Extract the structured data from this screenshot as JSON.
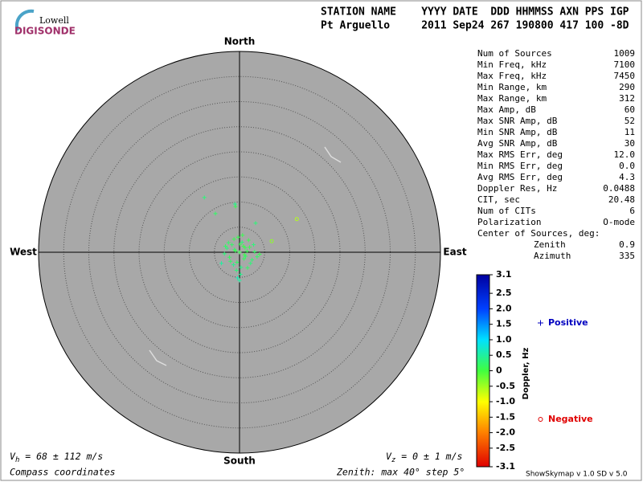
{
  "header": {
    "logo_top": "Lowell",
    "logo_bottom": "DIGISONDE",
    "columns": "STATION NAME    YYYY DATE  DDD HHMMSS AXN PPS IGP",
    "values": "Pt Arguello     2011 Sep24 267 190800 417 100 -8D"
  },
  "stats": [
    [
      "Num of Sources",
      "1009"
    ],
    [
      "Min Freq, kHz",
      "7100"
    ],
    [
      "Max Freq, kHz",
      "7450"
    ],
    [
      "Min Range, km",
      "290"
    ],
    [
      "Max Range, km",
      "312"
    ],
    [
      "Max Amp, dB",
      "60"
    ],
    [
      "Max SNR Amp, dB",
      "52"
    ],
    [
      "Min SNR Amp, dB",
      "11"
    ],
    [
      "Avg SNR Amp, dB",
      "30"
    ],
    [
      "Max RMS Err, deg",
      "12.0"
    ],
    [
      "Min RMS Err, deg",
      "0.0"
    ],
    [
      "Avg RMS Err, deg",
      "4.3"
    ],
    [
      "Doppler Res, Hz",
      "0.0488"
    ],
    [
      "CIT, sec",
      "20.48"
    ],
    [
      "Num of CITs",
      "6"
    ],
    [
      "Polarization",
      "O-mode"
    ]
  ],
  "center": {
    "title": "Center of Sources, deg:",
    "zenith_label": "Zenith",
    "zenith": "0.9",
    "azimuth_label": "Azimuth",
    "azimuth": "335"
  },
  "footer": {
    "vh_symbol": "V",
    "vh_sub": "h",
    "vh_text": " = 68 ± 112 m/s",
    "vz_symbol": "V",
    "vz_sub": "z",
    "vz_text": " = 0 ± 1 m/s",
    "coords": "Compass coordinates",
    "zenith": "Zenith: max 40°  step 5°",
    "version": "ShowSkymap v 1.0   SD v 5.0"
  },
  "chart_data": {
    "type": "skymap",
    "directions": {
      "north": "North",
      "south": "South",
      "east": "East",
      "west": "West"
    },
    "rlim": [
      0,
      40
    ],
    "rticks": [
      5,
      10,
      15,
      20,
      25,
      30,
      35
    ],
    "x": [
      -7,
      -4.8,
      -0.8,
      11.4,
      3.2,
      6.4,
      -0.9,
      0,
      -1,
      1,
      2,
      -2,
      0.5,
      -0.5,
      1.5,
      -1.5,
      2.5,
      -2.5,
      0.3,
      -0.3,
      1.2,
      -1.2,
      0.8,
      -0.8,
      3,
      -3,
      1.8,
      -1.8,
      0.2,
      0.6,
      -0.6,
      3.5,
      -3.6,
      1.1,
      -2.2,
      2.2,
      0.1,
      -0.4,
      1.6,
      -1.1,
      0.9,
      2.8,
      -2.8,
      0,
      4
    ],
    "y": [
      10.9,
      7.7,
      9.1,
      6.6,
      5.8,
      2.2,
      9.6,
      0,
      0.5,
      -0.5,
      1,
      -1,
      2,
      -2,
      0.2,
      1.5,
      -1.5,
      0.8,
      -3,
      3,
      -0.8,
      -2.5,
      1.2,
      0.3,
      0.1,
      -0.3,
      2.4,
      -1.8,
      -4.4,
      3.4,
      -3.6,
      -0.9,
      -2.2,
      0.9,
      1.9,
      -2.2,
      1.6,
      -5.1,
      -3.1,
      2.6,
      -1.3,
      1.5,
      1.2,
      -5.6,
      -0.4
    ],
    "doppler": [
      0.3,
      0.2,
      0.1,
      -0.6,
      0.3,
      -0.4,
      0.4,
      0.1,
      0.2,
      0.05,
      0.1,
      0.15,
      0.3,
      0.2,
      0.1,
      0.2,
      0.25,
      0.3,
      0.35,
      0.1,
      0.2,
      0.4,
      0.05,
      0.1,
      0.2,
      0.3,
      0.1,
      0.2,
      0.4,
      0.1,
      0.3,
      0.2,
      0.5,
      0.1,
      0.2,
      0.3,
      0.1,
      0.6,
      0.2,
      0.1,
      0.15,
      0.3,
      0.2,
      0.5,
      0.1
    ],
    "colorbar": {
      "title": "Doppler, Hz",
      "clim": [
        -3.1,
        3.1
      ],
      "ticks": [
        3.1,
        2.5,
        {
          "value": 2,
          "label": "2.0"
        },
        1.5,
        {
          "value": 1,
          "label": "1.0"
        },
        0.5,
        0,
        -0.5,
        {
          "value": -1,
          "label": "-1.0"
        },
        -1.5,
        {
          "value": -2,
          "label": "-2.0"
        },
        -2.5,
        -3.1
      ],
      "colormap": [
        [
          3.1,
          "#0000a0"
        ],
        [
          2,
          "#0040ff"
        ],
        [
          1,
          "#00e0ff"
        ],
        [
          0,
          "#40ff40"
        ],
        [
          -1,
          "#ffff00"
        ],
        [
          -2,
          "#ff8000"
        ],
        [
          -3.1,
          "#e00000"
        ]
      ]
    },
    "legend": {
      "positive": "Positive",
      "negative": "Negative",
      "positive_color": "#0000c0",
      "negative_color": "#e00000"
    }
  }
}
